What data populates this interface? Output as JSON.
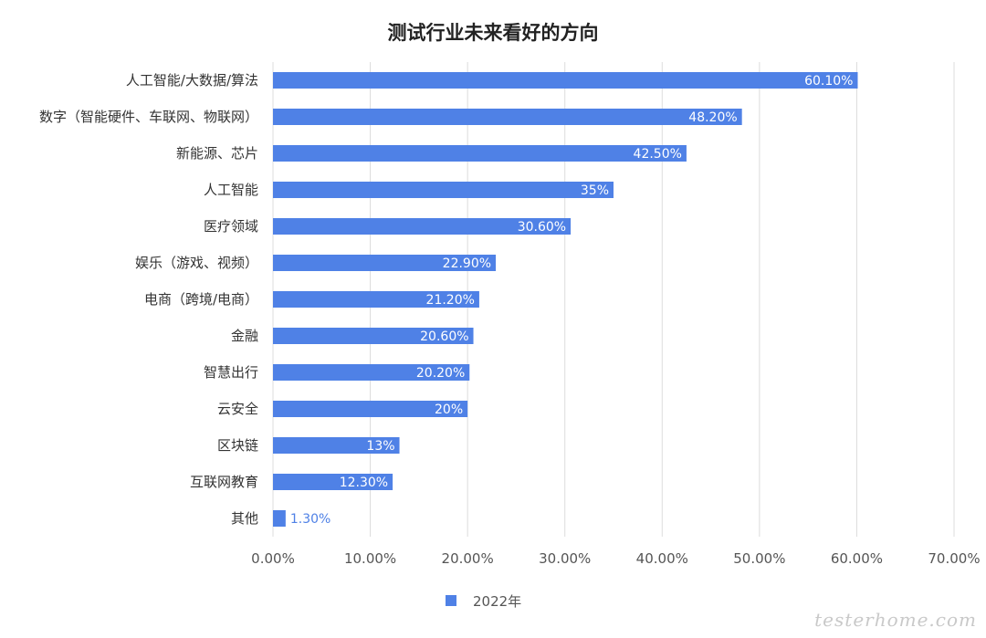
{
  "chart_data": {
    "type": "bar",
    "orientation": "horizontal",
    "title": "测试行业未来看好的方向",
    "categories": [
      "人工智能/大数据/算法",
      "数字（智能硬件、车联网、物联网）",
      "新能源、芯片",
      "人工智能",
      "医疗领域",
      "娱乐（游戏、视频）",
      "电商（跨境/电商）",
      "金融",
      "智慧出行",
      "云安全",
      "区块链",
      "互联网教育",
      "其他"
    ],
    "series": [
      {
        "name": "2022年",
        "values": [
          60.1,
          48.2,
          42.5,
          35,
          30.6,
          22.9,
          21.2,
          20.6,
          20.2,
          20,
          13,
          12.3,
          1.3
        ]
      }
    ],
    "value_labels": [
      "60.10%",
      "48.20%",
      "42.50%",
      "35%",
      "30.60%",
      "22.90%",
      "21.20%",
      "20.60%",
      "20.20%",
      "20%",
      "13%",
      "12.30%",
      "1.30%"
    ],
    "xlim": [
      0,
      70
    ],
    "xticks": [
      0,
      10,
      20,
      30,
      40,
      50,
      60,
      70
    ],
    "xtick_labels": [
      "0.00%",
      "10.00%",
      "20.00%",
      "30.00%",
      "40.00%",
      "50.00%",
      "60.00%",
      "70.00%"
    ],
    "grid": true,
    "legend_position": "bottom-center",
    "bar_color": "#4f81e6",
    "inside_label_color": "#ffffff",
    "outside_label_color": "#4f81e6"
  },
  "watermark": "testerhome.com"
}
